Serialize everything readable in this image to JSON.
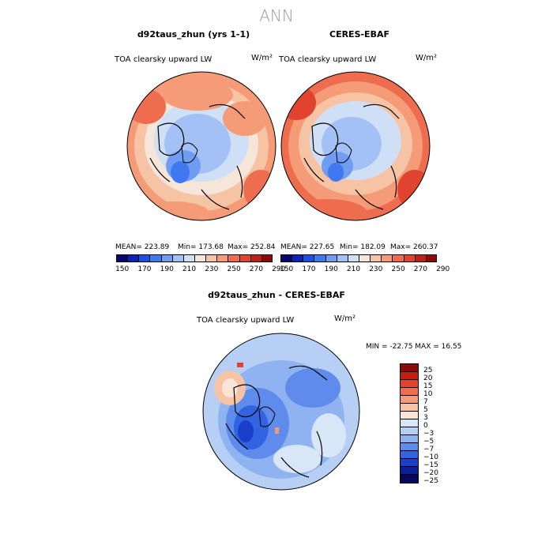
{
  "figure_title": "ANN",
  "panels": [
    {
      "title": "d92taus_zhun (yrs 1-1)",
      "variable": "TOA clearsky upward LW",
      "units": "W/m²",
      "stats": {
        "mean": "MEAN= 223.89",
        "min": "Min= 173.68",
        "max": "Max= 252.84"
      }
    },
    {
      "title": "CERES-EBAF",
      "variable": "TOA clearsky upward LW",
      "units": "W/m²",
      "stats": {
        "mean": "MEAN= 227.65",
        "min": "Min= 182.09",
        "max": "Max= 260.37"
      }
    },
    {
      "title": "d92taus_zhun - CERES-EBAF",
      "variable": "TOA clearsky upward LW",
      "units": "W/m²",
      "stats_line": "MIN = -22.75 MAX =  16.55"
    }
  ],
  "colorbar_abs": {
    "colors": [
      "#08066e",
      "#0a23b4",
      "#1f4fe0",
      "#3f78ef",
      "#6f9df2",
      "#a3c1f4",
      "#cfe0f6",
      "#f6e6da",
      "#f7c3a5",
      "#f59b78",
      "#ef6d4f",
      "#e0432f",
      "#c21e14",
      "#8d0b05"
    ],
    "tick_labels": [
      "150",
      "170",
      "190",
      "210",
      "230",
      "250",
      "270",
      "290"
    ]
  },
  "colorbar_diff": {
    "colors": [
      "#8d0b05",
      "#c21e14",
      "#e0432f",
      "#ef6d4f",
      "#f59b78",
      "#f7c3a5",
      "#fae4d6",
      "#d9e6f8",
      "#b7cff4",
      "#8fb2f0",
      "#5f8cec",
      "#3264e2",
      "#1a3fc8",
      "#0a1f9a",
      "#06085e"
    ],
    "tick_labels": [
      "25",
      "20",
      "15",
      "10",
      "7",
      "5",
      "3",
      "0",
      "−3",
      "−5",
      "−7",
      "−10",
      "−15",
      "−20",
      "−25"
    ]
  }
}
